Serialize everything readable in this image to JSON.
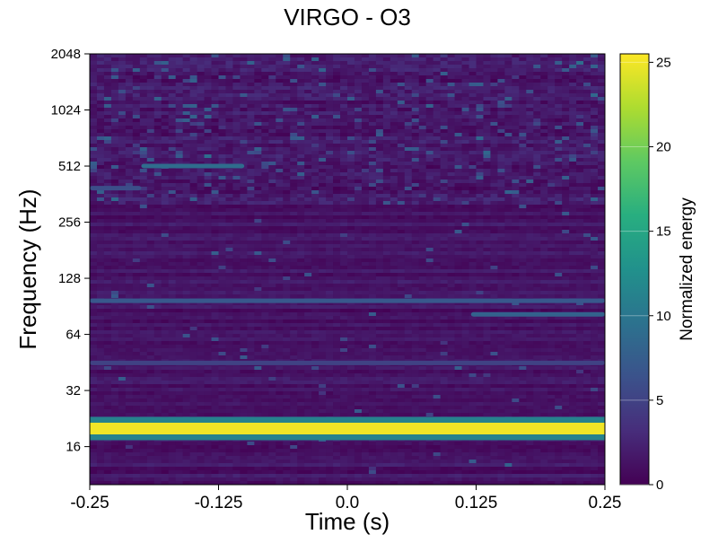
{
  "chart_data": {
    "type": "heatmap",
    "title": "VIRGO - O3",
    "xlabel": "Time (s)",
    "ylabel": "Frequency (Hz)",
    "colorbar_label": "Normalized energy",
    "colormap": "viridis",
    "x_range": [
      -0.25,
      0.25
    ],
    "x_ticks": [
      -0.25,
      -0.125,
      0.0,
      0.125,
      0.25
    ],
    "x_tick_labels": [
      "-0.25",
      "-0.125",
      "0.0",
      "0.125",
      "0.25"
    ],
    "y_scale": "log2",
    "y_range": [
      10,
      2048
    ],
    "y_ticks": [
      16,
      32,
      64,
      128,
      256,
      512,
      1024,
      2048
    ],
    "y_tick_labels": [
      "16",
      "32",
      "64",
      "128",
      "256",
      "512",
      "1024",
      "2048"
    ],
    "color_range": [
      0,
      25.5
    ],
    "color_ticks": [
      0,
      5,
      10,
      15,
      20,
      25
    ],
    "color_tick_labels": [
      "0",
      "5",
      "10",
      "15",
      "20",
      "25"
    ],
    "features": [
      {
        "frequency": 20,
        "energy": 25,
        "time_start": -0.25,
        "time_end": 0.25
      },
      {
        "frequency": 97,
        "energy": 7,
        "time_start": -0.25,
        "time_end": 0.25
      },
      {
        "frequency": 82,
        "energy": 8,
        "time_start": 0.12,
        "time_end": 0.25
      },
      {
        "frequency": 45,
        "energy": 5,
        "time_start": -0.25,
        "time_end": 0.25
      },
      {
        "frequency": 512,
        "energy": 9,
        "time_start": -0.2,
        "time_end": -0.1
      },
      {
        "frequency": 390,
        "energy": 6,
        "time_start": -0.25,
        "time_end": -0.2
      }
    ]
  }
}
